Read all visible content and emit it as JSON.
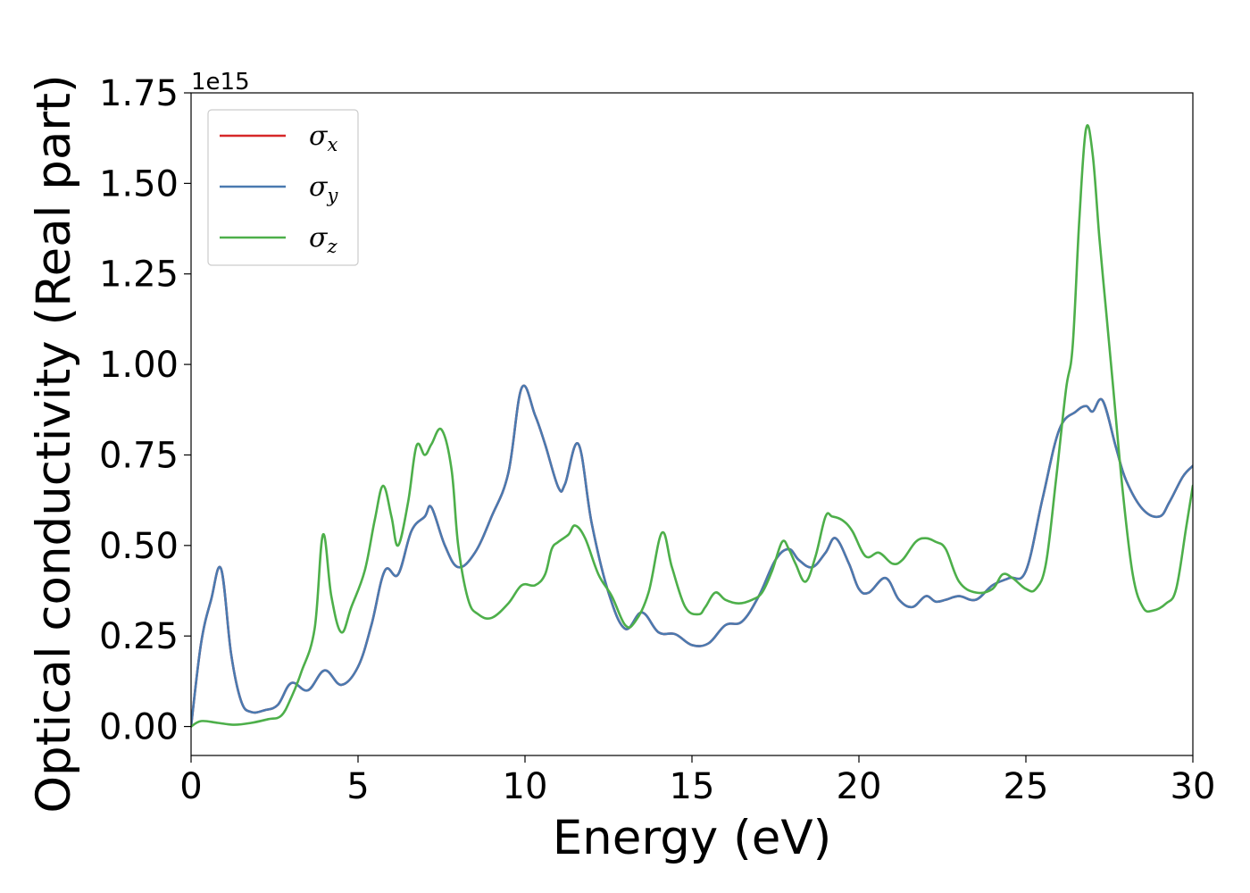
{
  "chart_data": {
    "type": "line",
    "xlabel": "Energy (eV)",
    "ylabel": "Optical conductivity (Real part)",
    "y_offset_text": "1e15",
    "y_multiplier": 1000000000000000.0,
    "xlim": [
      0,
      30
    ],
    "ylim": [
      -0.08,
      1.75
    ],
    "xticks": [
      0,
      5,
      10,
      15,
      20,
      25,
      30
    ],
    "xtick_labels": [
      "0",
      "5",
      "10",
      "15",
      "20",
      "25",
      "30"
    ],
    "yticks": [
      0,
      0.25,
      0.5,
      0.75,
      1.0,
      1.25,
      1.5,
      1.75
    ],
    "ytick_labels": [
      "0.00",
      "0.25",
      "0.50",
      "0.75",
      "1.00",
      "1.25",
      "1.50",
      "1.75"
    ],
    "grid": false,
    "legend_position": "top-left",
    "series": [
      {
        "name": "σx",
        "symbol": "σ",
        "subscript": "x",
        "color": "#d62728",
        "x": [
          0,
          0.3,
          0.6,
          0.9,
          1.2,
          1.5,
          1.8,
          2.2,
          2.6,
          3.0,
          3.5,
          4.0,
          4.5,
          5.0,
          5.4,
          5.8,
          6.2,
          6.6,
          7.0,
          7.2,
          7.6,
          8.0,
          8.5,
          9.0,
          9.5,
          9.9,
          10.3,
          10.6,
          11.0,
          11.2,
          11.6,
          12.0,
          12.5,
          13.0,
          13.5,
          14.0,
          14.5,
          15.0,
          15.5,
          16.0,
          16.5,
          17.0,
          17.5,
          17.9,
          18.2,
          18.6,
          19.0,
          19.3,
          19.7,
          20.0,
          20.3,
          20.8,
          21.2,
          21.6,
          22.0,
          22.3,
          22.6,
          23.0,
          23.5,
          24.0,
          24.5,
          25.0,
          25.5,
          26.0,
          26.5,
          26.8,
          27.0,
          27.3,
          27.7,
          28.0,
          28.5,
          29.0,
          29.3,
          29.7,
          30.0
        ],
        "y": [
          0.0,
          0.23,
          0.35,
          0.435,
          0.2,
          0.07,
          0.04,
          0.045,
          0.06,
          0.12,
          0.1,
          0.155,
          0.115,
          0.165,
          0.28,
          0.43,
          0.42,
          0.54,
          0.58,
          0.605,
          0.5,
          0.44,
          0.48,
          0.58,
          0.7,
          0.935,
          0.86,
          0.78,
          0.66,
          0.67,
          0.78,
          0.56,
          0.37,
          0.27,
          0.315,
          0.26,
          0.255,
          0.225,
          0.23,
          0.28,
          0.29,
          0.36,
          0.46,
          0.49,
          0.46,
          0.44,
          0.48,
          0.52,
          0.45,
          0.38,
          0.37,
          0.41,
          0.35,
          0.33,
          0.36,
          0.345,
          0.35,
          0.36,
          0.35,
          0.39,
          0.41,
          0.43,
          0.63,
          0.82,
          0.87,
          0.885,
          0.87,
          0.9,
          0.77,
          0.68,
          0.6,
          0.58,
          0.62,
          0.69,
          0.72
        ]
      },
      {
        "name": "σy",
        "symbol": "σ",
        "subscript": "y",
        "color": "#4a7ab0",
        "x": [
          0,
          0.3,
          0.6,
          0.9,
          1.2,
          1.5,
          1.8,
          2.2,
          2.6,
          3.0,
          3.5,
          4.0,
          4.5,
          5.0,
          5.4,
          5.8,
          6.2,
          6.6,
          7.0,
          7.2,
          7.6,
          8.0,
          8.5,
          9.0,
          9.5,
          9.9,
          10.3,
          10.6,
          11.0,
          11.2,
          11.6,
          12.0,
          12.5,
          13.0,
          13.5,
          14.0,
          14.5,
          15.0,
          15.5,
          16.0,
          16.5,
          17.0,
          17.5,
          17.9,
          18.2,
          18.6,
          19.0,
          19.3,
          19.7,
          20.0,
          20.3,
          20.8,
          21.2,
          21.6,
          22.0,
          22.3,
          22.6,
          23.0,
          23.5,
          24.0,
          24.5,
          25.0,
          25.5,
          26.0,
          26.5,
          26.8,
          27.0,
          27.3,
          27.7,
          28.0,
          28.5,
          29.0,
          29.3,
          29.7,
          30.0
        ],
        "y": [
          0.0,
          0.23,
          0.35,
          0.435,
          0.2,
          0.07,
          0.04,
          0.045,
          0.06,
          0.12,
          0.1,
          0.155,
          0.115,
          0.165,
          0.28,
          0.43,
          0.42,
          0.54,
          0.58,
          0.605,
          0.5,
          0.44,
          0.48,
          0.58,
          0.7,
          0.935,
          0.86,
          0.78,
          0.66,
          0.67,
          0.78,
          0.56,
          0.37,
          0.27,
          0.315,
          0.26,
          0.255,
          0.225,
          0.23,
          0.28,
          0.29,
          0.36,
          0.46,
          0.49,
          0.46,
          0.44,
          0.48,
          0.52,
          0.45,
          0.38,
          0.37,
          0.41,
          0.35,
          0.33,
          0.36,
          0.345,
          0.35,
          0.36,
          0.35,
          0.39,
          0.41,
          0.43,
          0.63,
          0.82,
          0.87,
          0.885,
          0.87,
          0.9,
          0.77,
          0.68,
          0.6,
          0.58,
          0.62,
          0.69,
          0.72
        ]
      },
      {
        "name": "σz",
        "symbol": "σ",
        "subscript": "z",
        "color": "#4daf4a",
        "x": [
          0,
          0.3,
          0.8,
          1.3,
          1.8,
          2.3,
          2.7,
          3.0,
          3.3,
          3.7,
          3.95,
          4.2,
          4.5,
          4.8,
          5.2,
          5.5,
          5.75,
          6.0,
          6.2,
          6.5,
          6.75,
          7.0,
          7.2,
          7.5,
          7.8,
          8.0,
          8.3,
          8.6,
          9.0,
          9.5,
          9.9,
          10.3,
          10.6,
          10.8,
          11.0,
          11.3,
          11.5,
          11.8,
          12.2,
          12.6,
          13.0,
          13.3,
          13.7,
          14.1,
          14.4,
          14.8,
          15.2,
          15.4,
          15.7,
          16.0,
          16.4,
          16.8,
          17.1,
          17.4,
          17.7,
          17.9,
          18.1,
          18.4,
          18.7,
          19.0,
          19.2,
          19.5,
          19.8,
          20.2,
          20.6,
          21.0,
          21.3,
          21.7,
          22.0,
          22.3,
          22.6,
          23.0,
          23.5,
          24.0,
          24.3,
          24.6,
          25.0,
          25.3,
          25.6,
          25.9,
          26.2,
          26.4,
          26.6,
          26.8,
          27.0,
          27.2,
          27.4,
          27.6,
          27.9,
          28.2,
          28.5,
          28.8,
          29.2,
          29.5,
          29.8,
          30.0
        ],
        "y": [
          0.0,
          0.015,
          0.01,
          0.005,
          0.01,
          0.02,
          0.03,
          0.08,
          0.15,
          0.27,
          0.53,
          0.36,
          0.26,
          0.33,
          0.43,
          0.57,
          0.665,
          0.58,
          0.5,
          0.62,
          0.775,
          0.75,
          0.78,
          0.82,
          0.71,
          0.5,
          0.35,
          0.31,
          0.3,
          0.34,
          0.39,
          0.39,
          0.42,
          0.49,
          0.51,
          0.53,
          0.555,
          0.52,
          0.42,
          0.36,
          0.28,
          0.29,
          0.37,
          0.535,
          0.44,
          0.33,
          0.31,
          0.33,
          0.37,
          0.35,
          0.34,
          0.35,
          0.37,
          0.43,
          0.51,
          0.49,
          0.45,
          0.4,
          0.47,
          0.58,
          0.58,
          0.57,
          0.54,
          0.47,
          0.48,
          0.45,
          0.46,
          0.51,
          0.52,
          0.51,
          0.49,
          0.4,
          0.37,
          0.38,
          0.42,
          0.41,
          0.38,
          0.38,
          0.45,
          0.68,
          0.93,
          1.05,
          1.4,
          1.65,
          1.58,
          1.35,
          1.15,
          0.95,
          0.65,
          0.42,
          0.33,
          0.32,
          0.34,
          0.38,
          0.55,
          0.665
        ]
      }
    ]
  }
}
